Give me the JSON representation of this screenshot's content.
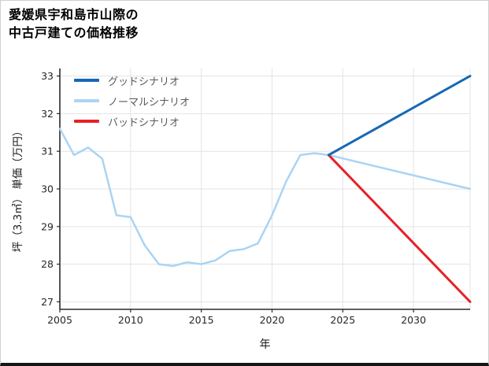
{
  "page": {
    "title_lines": [
      "愛媛県宇和島市山際の",
      "中古戸建ての価格推移"
    ]
  },
  "chart_data": {
    "type": "line",
    "title": "愛媛県宇和島市山際の中古戸建ての価格推移",
    "xlabel": "年",
    "ylabel": "坪（3.3㎡） 単価（万円）",
    "xlim": [
      2005,
      2034
    ],
    "ylim": [
      27,
      33
    ],
    "xticks": [
      2005,
      2010,
      2015,
      2020,
      2025,
      2030
    ],
    "yticks": [
      27,
      28,
      29,
      30,
      31,
      32,
      33
    ],
    "grid": true,
    "grid_color": "#e3e3e3",
    "axis_color": "#2b2b2b",
    "legend_position": "upper-left",
    "series": [
      {
        "name": "グッドシナリオ",
        "color": "#1668b5",
        "x": [
          2024,
          2034
        ],
        "y": [
          30.9,
          33.0
        ]
      },
      {
        "name": "ノーマルシナリオ",
        "color": "#aad4f4",
        "x": [
          2005,
          2006,
          2007,
          2008,
          2009,
          2010,
          2011,
          2012,
          2013,
          2014,
          2015,
          2016,
          2017,
          2018,
          2019,
          2020,
          2021,
          2022,
          2023,
          2024,
          2034
        ],
        "y": [
          31.6,
          30.9,
          31.1,
          30.8,
          29.3,
          29.25,
          28.5,
          28.0,
          27.95,
          28.05,
          28.0,
          28.1,
          28.35,
          28.4,
          28.55,
          29.3,
          30.2,
          30.9,
          30.95,
          30.9,
          30.0
        ]
      },
      {
        "name": "バッドシナリオ",
        "color": "#e62128",
        "x": [
          2024,
          2034
        ],
        "y": [
          30.9,
          27.0
        ]
      }
    ]
  }
}
